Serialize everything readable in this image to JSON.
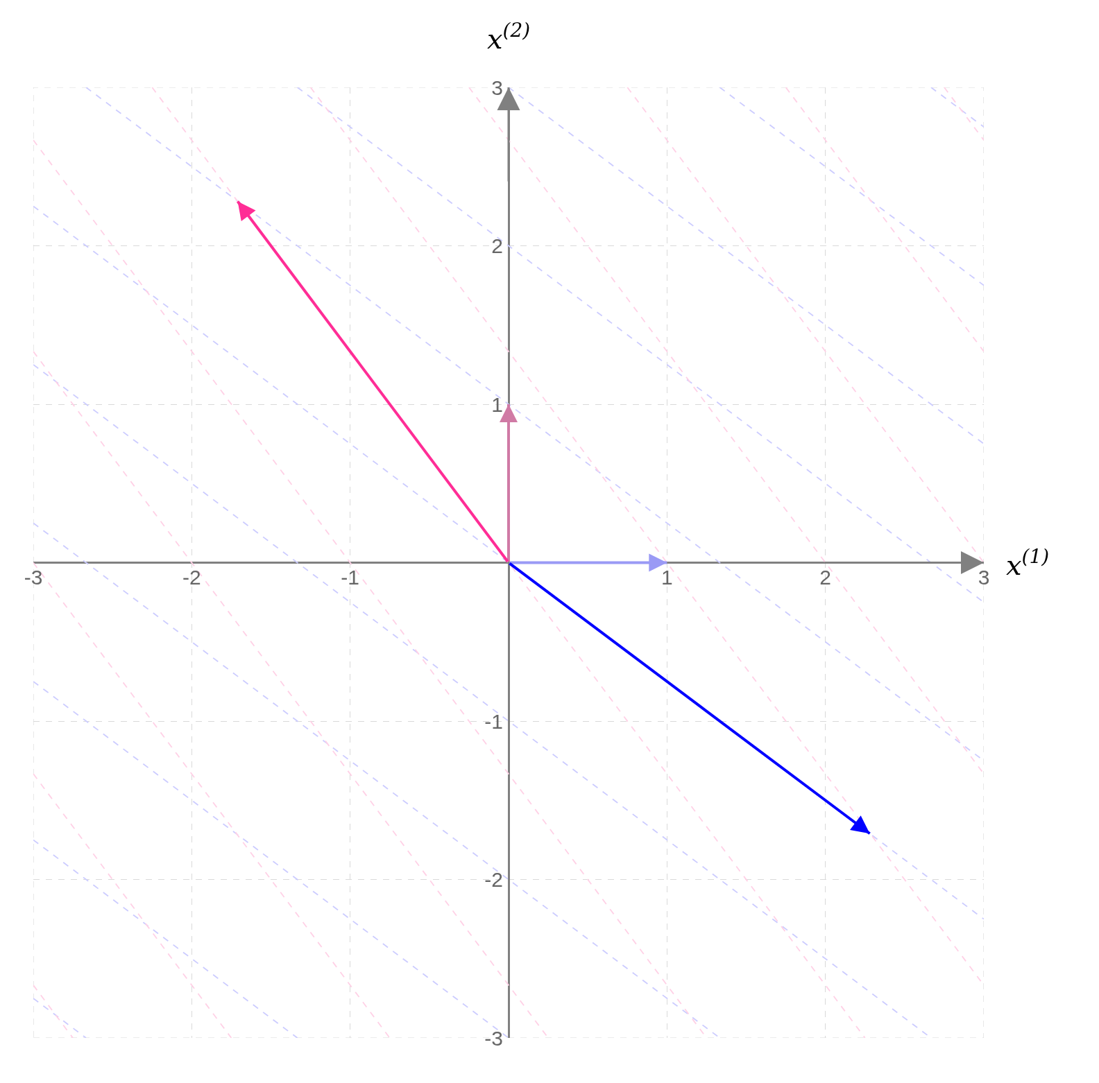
{
  "chart_data": {
    "type": "line",
    "xlabel": "x$^{(1)}$",
    "ylabel": "x$^{(2)}$",
    "xlim": [
      -3,
      3
    ],
    "ylim": [
      -3,
      3
    ],
    "xticks": [
      -3,
      -2,
      -1,
      1,
      2,
      3
    ],
    "yticks": [
      -3,
      -2,
      -1,
      1,
      2,
      3
    ],
    "grid": true,
    "series": [
      {
        "color": "#ccccff",
        "line_style": "dashed",
        "x": [
          -3,
          -2.667
        ],
        "values": [
          -2.75,
          -3
        ]
      },
      {
        "color": "#ccccff",
        "line_style": "dashed",
        "x": [
          -3,
          -1.333
        ],
        "values": [
          -1.75,
          -3
        ]
      },
      {
        "color": "#ccccff",
        "line_style": "dashed",
        "x": [
          -3,
          0
        ],
        "values": [
          -0.75,
          -3
        ]
      },
      {
        "color": "#ccccff",
        "line_style": "dashed",
        "x": [
          -3,
          1.333
        ],
        "values": [
          0.25,
          -3
        ]
      },
      {
        "color": "#ccccff",
        "line_style": "dashed",
        "x": [
          -3,
          2.667
        ],
        "values": [
          1.25,
          -3
        ]
      },
      {
        "color": "#ccccff",
        "line_style": "dashed",
        "x": [
          -3,
          3
        ],
        "values": [
          2.25,
          -2.25
        ]
      },
      {
        "color": "#ccccff",
        "line_style": "dashed",
        "x": [
          -2.667,
          3
        ],
        "values": [
          3,
          -1.25
        ]
      },
      {
        "color": "#ccccff",
        "line_style": "dashed",
        "x": [
          -1.333,
          3
        ],
        "values": [
          3,
          -0.25
        ]
      },
      {
        "color": "#ccccff",
        "line_style": "dashed",
        "x": [
          0,
          3
        ],
        "values": [
          3,
          0.75
        ]
      },
      {
        "color": "#ccccff",
        "line_style": "dashed",
        "x": [
          1.333,
          3
        ],
        "values": [
          3,
          1.75
        ]
      },
      {
        "color": "#ccccff",
        "line_style": "dashed",
        "x": [
          2.667,
          3
        ],
        "values": [
          3,
          2.75
        ]
      },
      {
        "color": "#ffd1e6",
        "line_style": "dashed",
        "x": [
          -3,
          -2.75
        ],
        "values": [
          -2.667,
          -3
        ]
      },
      {
        "color": "#ffd1e6",
        "line_style": "dashed",
        "x": [
          -3,
          -1.75
        ],
        "values": [
          -1.333,
          -3
        ]
      },
      {
        "color": "#ffd1e6",
        "line_style": "dashed",
        "x": [
          -3,
          -0.75
        ],
        "values": [
          0,
          -3
        ]
      },
      {
        "color": "#ffd1e6",
        "line_style": "dashed",
        "x": [
          -3,
          0.25
        ],
        "values": [
          1.333,
          -3
        ]
      },
      {
        "color": "#ffd1e6",
        "line_style": "dashed",
        "x": [
          -3,
          1.25
        ],
        "values": [
          2.667,
          -3
        ]
      },
      {
        "color": "#ffd1e6",
        "line_style": "dashed",
        "x": [
          -2.25,
          2.25
        ],
        "values": [
          3,
          -3
        ]
      },
      {
        "color": "#ffd1e6",
        "line_style": "dashed",
        "x": [
          -1.25,
          3
        ],
        "values": [
          3,
          -2.667
        ]
      },
      {
        "color": "#ffd1e6",
        "line_style": "dashed",
        "x": [
          -0.25,
          3
        ],
        "values": [
          3,
          -1.333
        ]
      },
      {
        "color": "#ffd1e6",
        "line_style": "dashed",
        "x": [
          0.75,
          3
        ],
        "values": [
          3,
          0
        ]
      },
      {
        "color": "#ffd1e6",
        "line_style": "dashed",
        "x": [
          1.75,
          3
        ],
        "values": [
          3,
          1.333
        ]
      },
      {
        "color": "#ffd1e6",
        "line_style": "dashed",
        "x": [
          2.75,
          3
        ],
        "values": [
          3,
          2.667
        ]
      },
      {
        "color": "#9a9af5",
        "line_style": "solid",
        "x": [
          0,
          1
        ],
        "values": [
          0,
          0
        ]
      },
      {
        "color": "#d07aa5",
        "line_style": "solid",
        "x": [
          0,
          0
        ],
        "values": [
          0,
          1
        ]
      },
      {
        "color": "#0000ff",
        "line_style": "solid",
        "x": [
          0,
          2.28
        ],
        "values": [
          0,
          -1.71
        ]
      },
      {
        "color": "#ff2d96",
        "line_style": "solid",
        "x": [
          0,
          -1.71
        ],
        "values": [
          0,
          2.28
        ]
      }
    ]
  }
}
